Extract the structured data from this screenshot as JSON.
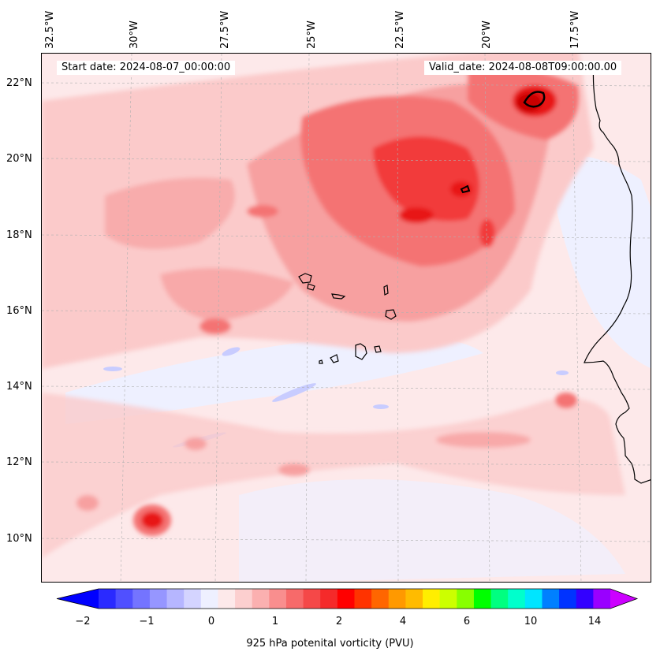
{
  "header": {
    "start_date": "Start date: 2024-08-07_00:00:00",
    "valid_date": "Valid_date: 2024-08-08T09:00:00.00"
  },
  "axes": {
    "longitude_labels": [
      "32.5°W",
      "30°W",
      "27.5°W",
      "25°W",
      "22.5°W",
      "20°W",
      "17.5°W"
    ],
    "latitude_labels": [
      "22°N",
      "20°N",
      "18°N",
      "16°N",
      "14°N",
      "12°N",
      "10°N"
    ]
  },
  "colorbar": {
    "label": "925 hPa potenital vorticity (PVU)",
    "tick_labels": [
      "−2",
      "−1",
      "0",
      "1",
      "2",
      "4",
      "6",
      "10",
      "14"
    ],
    "colors": [
      "#0000ff",
      "#2a2aff",
      "#5050ff",
      "#7474ff",
      "#9696ff",
      "#b6b6ff",
      "#d4d4ff",
      "#eef0ff",
      "#fde9ea",
      "#fccfcf",
      "#fbb0b0",
      "#f98e8e",
      "#f76a6a",
      "#f54848",
      "#f52a2a",
      "#ff0000",
      "#ff3300",
      "#ff6600",
      "#ff9900",
      "#ffbb00",
      "#ffee00",
      "#ccff00",
      "#88ff00",
      "#00ff00",
      "#00ff80",
      "#00ffcc",
      "#00e5ff",
      "#0080ff",
      "#0033ff",
      "#3300ff",
      "#9900ff",
      "#cc00ff"
    ]
  },
  "map_colors": {
    "background": "#fde9ea",
    "light_pink": "#fbcaca",
    "medium_pink": "#f7a0a0",
    "salmon": "#f47373",
    "red": "#f23b3b",
    "deep_red": "#e81414",
    "pale_blue": "#e8ecff",
    "light_blue": "#c8ccff",
    "coastline": "#000000"
  }
}
